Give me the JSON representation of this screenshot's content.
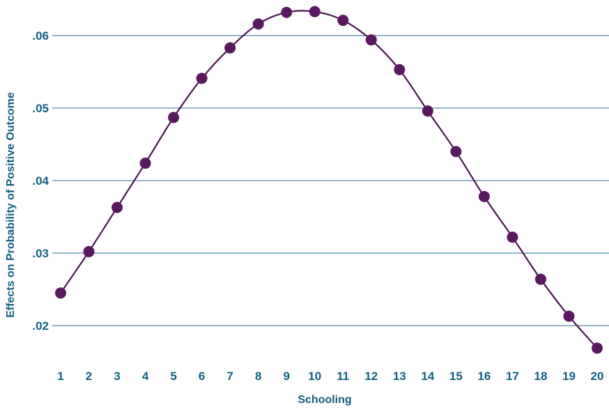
{
  "chart_data": {
    "type": "line",
    "title": "",
    "xlabel": "Schooling",
    "ylabel": "Effects on Probability of Positive Outcome",
    "categories": [
      "1",
      "2",
      "3",
      "4",
      "5",
      "6",
      "7",
      "8",
      "9",
      "10",
      "11",
      "12",
      "13",
      "14",
      "15",
      "16",
      "17",
      "18",
      "19",
      "20"
    ],
    "x": [
      1,
      2,
      3,
      4,
      5,
      6,
      7,
      8,
      9,
      10,
      11,
      12,
      13,
      14,
      15,
      16,
      17,
      18,
      19,
      20
    ],
    "series": [
      {
        "values": [
          0.0245,
          0.0302,
          0.0363,
          0.0424,
          0.0487,
          0.0541,
          0.0583,
          0.0616,
          0.0632,
          0.0633,
          0.0621,
          0.0594,
          0.0553,
          0.0496,
          0.044,
          0.0378,
          0.0322,
          0.0264,
          0.0213,
          0.0169
        ]
      }
    ],
    "yticks": [
      0.02,
      0.03,
      0.04,
      0.05,
      0.06
    ],
    "ytick_labels": [
      ".02",
      ".03",
      ".04",
      ".05",
      ".06"
    ],
    "ylim": [
      0.0165,
      0.0665
    ],
    "xlim": [
      0.7,
      20.3
    ],
    "grid": "horizontal",
    "legend": "none",
    "colors": {
      "line": "#4a1450",
      "marker": "#5a1860",
      "grid": "#2a6e8e",
      "text": "#0f5f80"
    }
  }
}
